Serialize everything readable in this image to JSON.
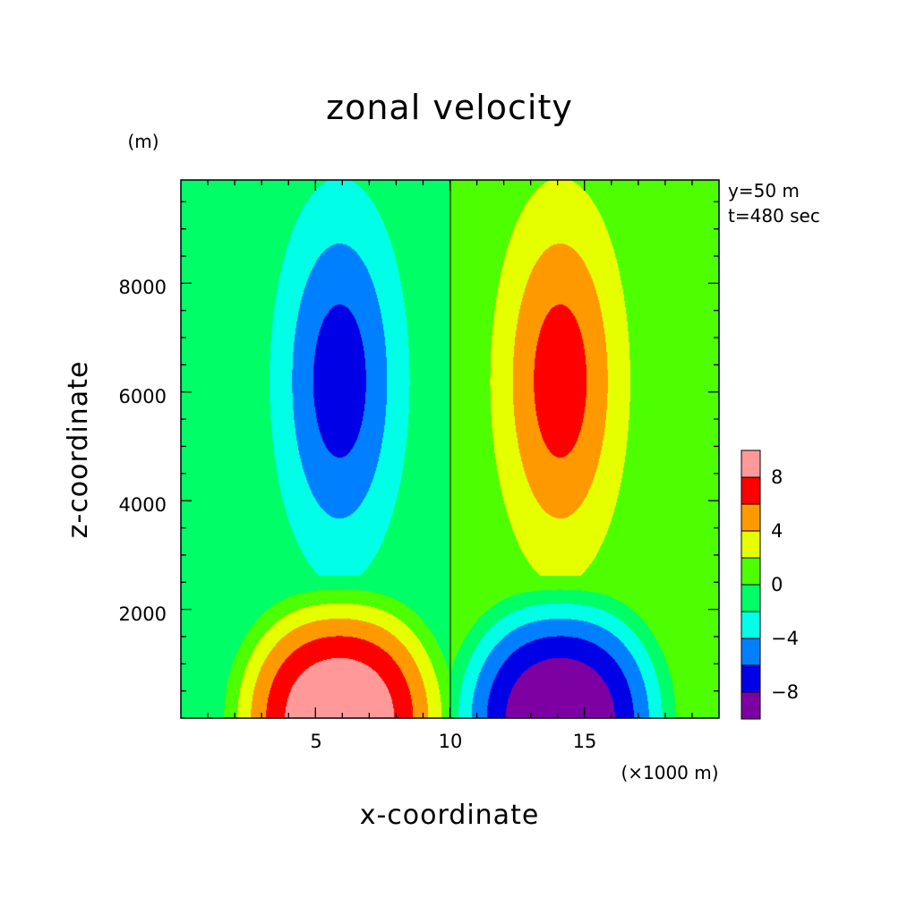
{
  "chart_data": {
    "type": "heatmap",
    "title": "zonal velocity",
    "xlabel": "x-coordinate",
    "ylabel": "z-coordinate",
    "x_unit": "(×1000 m)",
    "y_unit": "(m)",
    "xlim": [
      0,
      20
    ],
    "ylim": [
      0,
      9900
    ],
    "x_ticks": [
      "5",
      "10",
      "15"
    ],
    "y_ticks": [
      "2000",
      "4000",
      "6000",
      "8000"
    ],
    "annotations": [
      "y=50 m",
      "t=480 sec"
    ],
    "colorbar": {
      "levels": [
        -10,
        -8,
        -6,
        -4,
        -2,
        0,
        2,
        4,
        6,
        8,
        10
      ],
      "colors": [
        "#7d00a3",
        "#0000e6",
        "#0080ff",
        "#00ffe6",
        "#00ff66",
        "#4dff00",
        "#e6ff00",
        "#ff9900",
        "#ff0000",
        "#ff9999"
      ],
      "tick_labels": [
        "-8",
        "-4",
        "0",
        "4",
        "8"
      ]
    },
    "field": {
      "description_free": true,
      "surface_cell_peak": {
        "x": 5.9,
        "z": 0,
        "value": 10
      },
      "upper_cell_peak": {
        "x": 5.9,
        "z": 6200,
        "value": -7
      }
    }
  }
}
